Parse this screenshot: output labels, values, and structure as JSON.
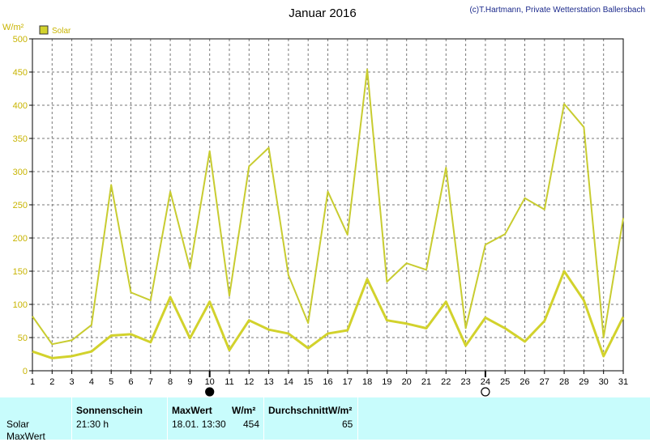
{
  "header": {
    "title": "Januar 2016",
    "copyright": "(c)T.Hartmann, Private Wetterstation Ballersbach",
    "unit": "W/m²",
    "legend_label": "Solar"
  },
  "colors": {
    "series": "#d2d22c",
    "series_thin": "#c8cc30",
    "tick_text": "#c8b400",
    "footer_bg": "#c8fcfc"
  },
  "chart_data": {
    "type": "line",
    "title": "Januar 2016",
    "ylabel": "W/m²",
    "ylim": [
      0,
      500
    ],
    "yticks": [
      0,
      50,
      100,
      150,
      200,
      250,
      300,
      350,
      400,
      450,
      500
    ],
    "xlim": [
      1,
      31
    ],
    "x": [
      1,
      2,
      3,
      4,
      5,
      6,
      7,
      8,
      9,
      10,
      11,
      12,
      13,
      14,
      15,
      16,
      17,
      18,
      19,
      20,
      21,
      22,
      23,
      24,
      25,
      26,
      27,
      28,
      29,
      30,
      31
    ],
    "grid": true,
    "legend": "top-left",
    "series": [
      {
        "name": "Solar",
        "role": "max",
        "values": [
          82,
          40,
          46,
          69,
          280,
          118,
          106,
          270,
          154,
          331,
          113,
          308,
          336,
          144,
          72,
          270,
          205,
          454,
          134,
          162,
          152,
          306,
          64,
          190,
          206,
          260,
          243,
          402,
          367,
          50,
          230
        ]
      },
      {
        "name": "",
        "role": "mean",
        "values": [
          29,
          19,
          22,
          29,
          53,
          55,
          43,
          111,
          49,
          104,
          31,
          76,
          62,
          56,
          34,
          56,
          61,
          138,
          76,
          71,
          64,
          104,
          38,
          80,
          64,
          44,
          75,
          150,
          106,
          22,
          81
        ]
      }
    ],
    "markers": [
      {
        "x": 10,
        "type": "full-moon-filled"
      },
      {
        "x": 24,
        "type": "moon-open"
      }
    ]
  },
  "footer": {
    "col_sonnenschein": "Sonnenschein",
    "col_maxwert": "MaxWert",
    "col_unit": "W/m²",
    "col_durchschnitt": "DurchschnittW/m²",
    "row_label": "Solar",
    "row_label2": "MaxWert",
    "sonnenschein_value": "21:30 h",
    "max_date": "18.01.  13:30",
    "max_value": "454",
    "avg_value": "65"
  }
}
